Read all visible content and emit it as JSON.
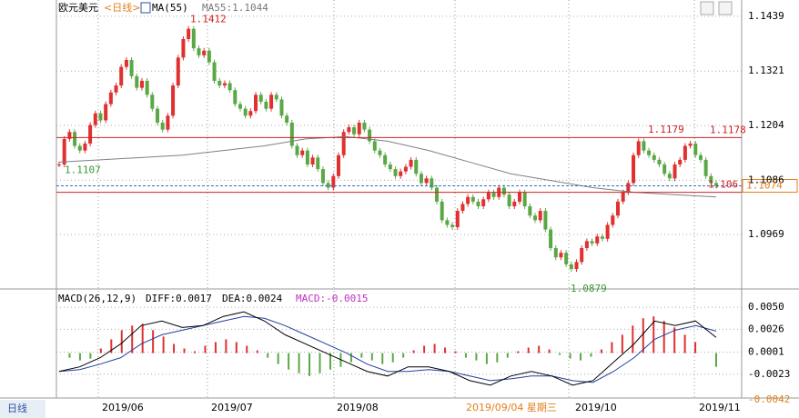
{
  "header": {
    "symbol": "欧元美元",
    "period": "<日线>",
    "ma_name": "MA(55)",
    "ma_value": "MA55:1.1044"
  },
  "macd_header": {
    "name": "MACD(26,12,9)",
    "diff": "DIFF:0.0017",
    "dea": "DEA:0.0024",
    "macd": "MACD:-0.0015"
  },
  "footer": {
    "tab": "日线",
    "cursor_date": "2019/09/04 星期三",
    "macd_extra": "-0.0042"
  },
  "chart_data": [
    {
      "type": "candlestick",
      "ylim": [
        1.0852,
        1.1474
      ],
      "yticks": [
        1.1439,
        1.1321,
        1.1204,
        1.1086,
        1.0969
      ],
      "up_color": "#e03030",
      "down_color": "#5aa845",
      "closes": [
        1.112,
        1.1175,
        1.119,
        1.116,
        1.115,
        1.1165,
        1.1205,
        1.123,
        1.1215,
        1.125,
        1.1275,
        1.129,
        1.133,
        1.1345,
        1.131,
        1.1285,
        1.13,
        1.127,
        1.124,
        1.121,
        1.1195,
        1.1225,
        1.129,
        1.135,
        1.139,
        1.1412,
        1.137,
        1.1355,
        1.1365,
        1.134,
        1.13,
        1.129,
        1.1295,
        1.128,
        1.125,
        1.124,
        1.1225,
        1.1235,
        1.127,
        1.1255,
        1.124,
        1.127,
        1.126,
        1.1225,
        1.121,
        1.116,
        1.114,
        1.115,
        1.112,
        1.1135,
        1.111,
        1.108,
        1.107,
        1.1095,
        1.114,
        1.119,
        1.12,
        1.1185,
        1.121,
        1.1195,
        1.117,
        1.115,
        1.114,
        1.112,
        1.111,
        1.1095,
        1.1105,
        1.1115,
        1.113,
        1.11,
        1.108,
        1.109,
        1.107,
        1.104,
        1.1,
        1.099,
        1.0985,
        1.102,
        1.1035,
        1.105,
        1.104,
        1.103,
        1.1045,
        1.106,
        1.105,
        1.107,
        1.1055,
        1.103,
        1.104,
        1.106,
        1.103,
        1.101,
        1.1,
        1.102,
        1.098,
        1.094,
        1.092,
        1.093,
        1.0905,
        1.0895,
        1.091,
        1.094,
        1.0955,
        1.095,
        1.0965,
        1.096,
        1.099,
        1.101,
        1.104,
        1.106,
        1.108,
        1.114,
        1.117,
        1.115,
        1.114,
        1.113,
        1.112,
        1.11,
        1.109,
        1.112,
        1.113,
        1.116,
        1.1165,
        1.114,
        1.113,
        1.1095,
        1.108,
        1.1074
      ],
      "ma55": {
        "color": "#808080",
        "values": [
          1.1125,
          1.113,
          1.1135,
          1.114,
          1.115,
          1.116,
          1.1175,
          1.118,
          1.117,
          1.115,
          1.1125,
          1.11,
          1.1085,
          1.107,
          1.106,
          1.1055,
          1.105
        ]
      },
      "lines": [
        {
          "value": 1.1178,
          "color": "#d02020"
        },
        {
          "value": 1.106,
          "color": "#d02020"
        },
        {
          "value": 1.1074,
          "color": "#3070c0"
        }
      ],
      "annotations": [
        {
          "value": 1.1412,
          "color": "#d02020"
        },
        {
          "value": 1.1107,
          "color": "#3a9a30"
        },
        {
          "value": 1.0879,
          "color": "#3a9a30"
        },
        {
          "value": 1.1179,
          "color": "#d02020"
        }
      ],
      "x_labels": [
        "2019/06",
        "2019/07",
        "2019/08",
        "2019/10",
        "2019/11"
      ]
    },
    {
      "type": "macd",
      "ylim": [
        -0.0048,
        0.0063
      ],
      "yticks": [
        {
          "value": 0.005,
          "label": "0.0050"
        },
        {
          "value": 0.0026,
          "label": "0.0026"
        },
        {
          "value": 0.0001,
          "label": "0.0001"
        },
        {
          "value": -0.0023,
          "label": "-0.0023"
        }
      ],
      "diff": {
        "color": "#000000",
        "values": [
          -0.002,
          -0.0015,
          -0.0005,
          0.001,
          0.003,
          0.0035,
          0.0028,
          0.003,
          0.004,
          0.0045,
          0.0035,
          0.002,
          0.001,
          0.0,
          -0.001,
          -0.002,
          -0.0025,
          -0.0015,
          -0.0015,
          -0.002,
          -0.003,
          -0.0035,
          -0.0025,
          -0.002,
          -0.0025,
          -0.0035,
          -0.003,
          -0.001,
          0.001,
          0.0035,
          0.003,
          0.0035,
          0.0017
        ]
      },
      "dea": {
        "color": "#2040a0",
        "values": [
          -0.002,
          -0.0018,
          -0.0012,
          -0.0005,
          0.001,
          0.002,
          0.0025,
          0.003,
          0.0035,
          0.004,
          0.0038,
          0.003,
          0.002,
          0.001,
          0.0,
          -0.0012,
          -0.002,
          -0.002,
          -0.0018,
          -0.002,
          -0.0025,
          -0.003,
          -0.0028,
          -0.0025,
          -0.0025,
          -0.003,
          -0.0032,
          -0.002,
          -0.0005,
          0.0015,
          0.0025,
          0.003,
          0.0024
        ]
      },
      "histogram": {
        "up_color": "#e03030",
        "down_color": "#5aa845",
        "values": [
          0.0,
          -0.0005,
          -0.0008,
          -0.0006,
          0.0005,
          0.0015,
          0.0025,
          0.003,
          0.0032,
          0.0025,
          0.0018,
          0.001,
          0.0005,
          0.0002,
          0.0008,
          0.0012,
          0.0015,
          0.0012,
          0.0008,
          0.0003,
          -0.0005,
          -0.0012,
          -0.0018,
          -0.0022,
          -0.0025,
          -0.0022,
          -0.0018,
          -0.0015,
          -0.001,
          -0.0005,
          -0.0008,
          -0.0012,
          -0.001,
          -0.0005,
          0.0003,
          0.0008,
          0.001,
          0.0006,
          0.0002,
          -0.0005,
          -0.0008,
          -0.0012,
          -0.001,
          -0.0005,
          0.0002,
          0.0006,
          0.0008,
          0.0004,
          -0.0002,
          -0.0006,
          -0.0008,
          -0.0004,
          0.0004,
          0.0012,
          0.002,
          0.003,
          0.0038,
          0.004,
          0.0035,
          0.0028,
          0.002,
          0.0012,
          0.0,
          -0.0015
        ]
      }
    }
  ]
}
